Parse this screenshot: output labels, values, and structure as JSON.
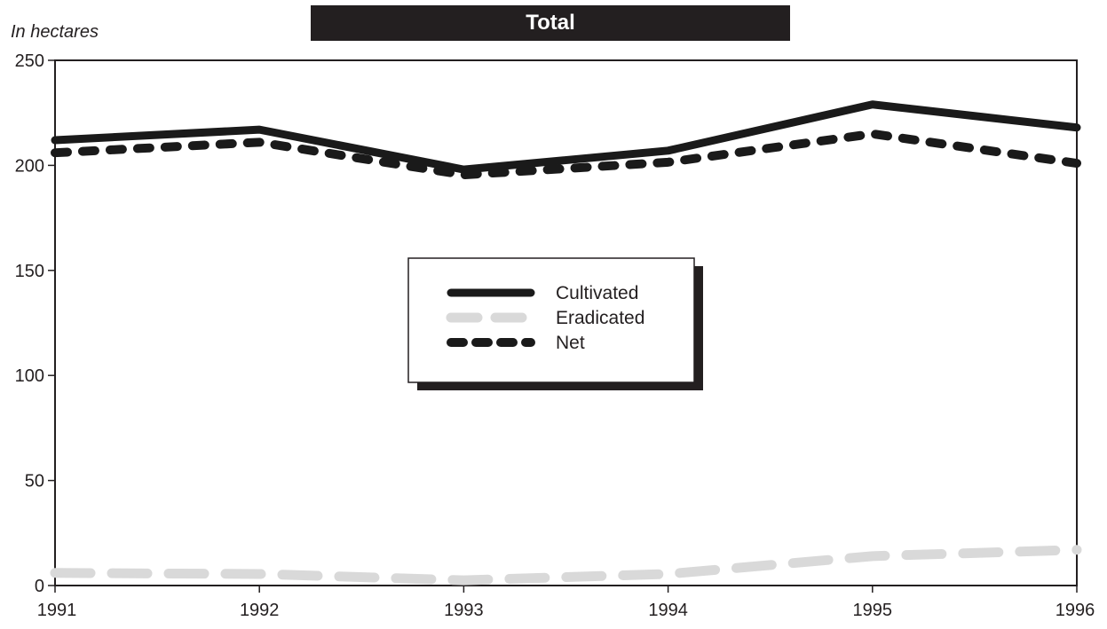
{
  "chart_data": {
    "type": "line",
    "title": "Total",
    "ylabel": "In hectares",
    "xlabel": "",
    "x": [
      "1991",
      "1992",
      "1993",
      "1994",
      "1995",
      "1996"
    ],
    "ylim": [
      0,
      250
    ],
    "yticks": [
      0,
      50,
      100,
      150,
      200,
      250
    ],
    "series": [
      {
        "name": "Cultivated",
        "values": [
          212,
          217,
          198,
          207,
          229,
          218
        ],
        "color": "#1a1a1a",
        "style": "solid"
      },
      {
        "name": "Eradicated",
        "values": [
          6,
          5.5,
          2.5,
          5.5,
          14,
          17
        ],
        "color": "#d9d9d9",
        "style": "dashed"
      },
      {
        "name": "Net",
        "values": [
          206,
          211,
          195.5,
          201.5,
          215,
          201
        ],
        "color": "#1a1a1a",
        "style": "dotted"
      }
    ],
    "grid": false,
    "legend_position": "center"
  }
}
